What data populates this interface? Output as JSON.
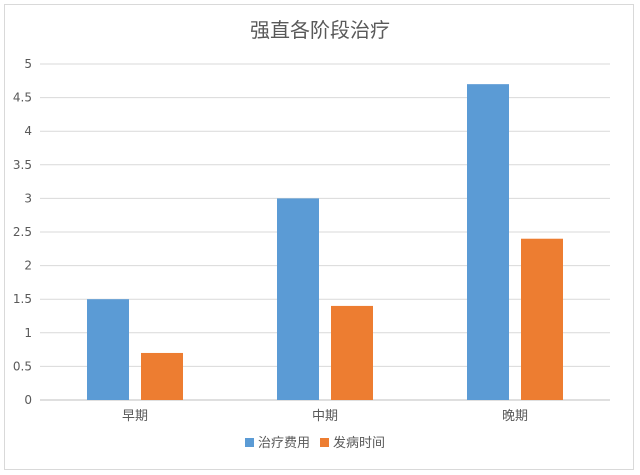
{
  "chart_data": {
    "type": "bar",
    "title": "强直各阶段治疗",
    "categories": [
      "早期",
      "中期",
      "晚期"
    ],
    "series": [
      {
        "name": "治疗费用",
        "values": [
          1.5,
          3.0,
          4.7
        ],
        "color": "#5b9bd5"
      },
      {
        "name": "发病时间",
        "values": [
          0.7,
          1.4,
          2.4
        ],
        "color": "#ed7d31"
      }
    ],
    "ylim": [
      0,
      5
    ],
    "yticks": [
      "0",
      "0.5",
      "1",
      "1.5",
      "2",
      "2.5",
      "3",
      "3.5",
      "4",
      "4.5",
      "5"
    ],
    "grid": true,
    "legend_position": "bottom",
    "xlabel": "",
    "ylabel": ""
  }
}
